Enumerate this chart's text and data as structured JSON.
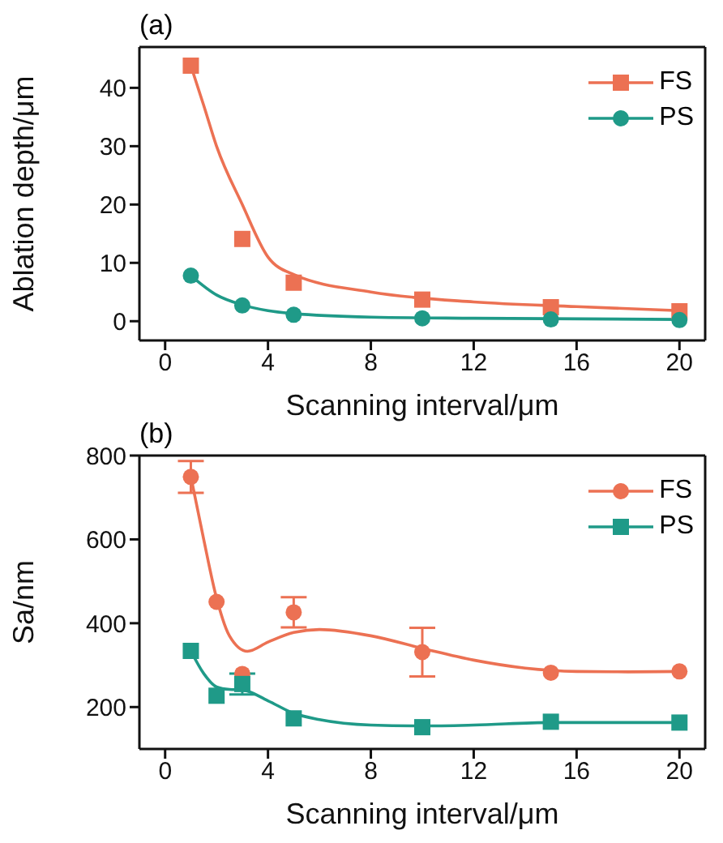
{
  "chart_data": [
    {
      "type": "scatter",
      "title": "(a)",
      "xlabel": "Scanning interval/μm",
      "ylabel": "Ablation depth/μm",
      "xlim": [
        -1,
        21
      ],
      "xticks": [
        0,
        4,
        8,
        12,
        16,
        20
      ],
      "ylim": [
        -3.3,
        47
      ],
      "yticks": [
        0,
        10,
        20,
        30,
        40
      ],
      "legend": "top right",
      "series": [
        {
          "name": "FS",
          "marker": "square",
          "color": "#ec7153",
          "x": [
            1,
            3,
            5,
            10,
            15,
            20
          ],
          "values": [
            43.8,
            14.1,
            6.6,
            3.7,
            2.4,
            1.7
          ]
        },
        {
          "name": "PS",
          "marker": "circle",
          "color": "#1f9a88",
          "x": [
            1,
            3,
            5,
            10,
            15,
            20
          ],
          "values": [
            7.8,
            2.7,
            1.1,
            0.5,
            0.3,
            0.2
          ]
        },
        {
          "type": "line",
          "marker": "none",
          "color": "#ec7153",
          "x": [
            1,
            1.5,
            2,
            3,
            4,
            5,
            8,
            12,
            16,
            20
          ],
          "values": [
            43.8,
            37,
            30,
            20,
            11,
            8,
            5,
            3.3,
            2.5,
            1.8
          ]
        },
        {
          "type": "line",
          "marker": "none",
          "color": "#1f9a88",
          "x": [
            1,
            2,
            3,
            4,
            5,
            8,
            12,
            20
          ],
          "values": [
            7.8,
            4.5,
            2.8,
            1.8,
            1.3,
            0.7,
            0.5,
            0.3
          ]
        }
      ]
    },
    {
      "type": "scatter",
      "title": "(b)",
      "xlabel": "Scanning interval/μm",
      "ylabel": "Sa/nm",
      "xlim": [
        -1,
        21
      ],
      "xticks": [
        0,
        4,
        8,
        12,
        16,
        20
      ],
      "ylim": [
        100,
        800
      ],
      "yticks": [
        200,
        400,
        600,
        800
      ],
      "legend": "top right",
      "series": [
        {
          "name": "FS",
          "marker": "circle",
          "color": "#ec7153",
          "x": [
            1,
            2,
            3,
            5,
            10,
            15,
            20
          ],
          "values": [
            749,
            451,
            279,
            426,
            331,
            282,
            285
          ],
          "errors": [
            38,
            null,
            null,
            36,
            58,
            null,
            null
          ]
        },
        {
          "name": "PS",
          "marker": "square",
          "color": "#1f9a88",
          "x": [
            1,
            2,
            3,
            5,
            10,
            15,
            20
          ],
          "values": [
            334,
            227,
            255,
            173,
            152,
            165,
            163
          ],
          "errors": [
            null,
            null,
            25,
            null,
            null,
            null,
            null
          ]
        },
        {
          "type": "line",
          "marker": "none",
          "color": "#ec7153",
          "x": [
            1,
            1.5,
            2,
            2.5,
            3.2,
            4,
            5,
            6,
            8,
            10,
            12,
            14,
            16,
            18,
            20
          ],
          "values": [
            750,
            600,
            460,
            370,
            333,
            355,
            378,
            385,
            370,
            340,
            312,
            293,
            285,
            284,
            285
          ]
        },
        {
          "type": "line",
          "marker": "none",
          "color": "#1f9a88",
          "x": [
            1,
            1.5,
            2,
            2.5,
            3,
            4,
            5,
            6,
            8,
            10,
            12,
            15,
            20
          ],
          "values": [
            334,
            280,
            248,
            242,
            241,
            215,
            185,
            170,
            157,
            155,
            157,
            163,
            163
          ]
        }
      ]
    }
  ]
}
